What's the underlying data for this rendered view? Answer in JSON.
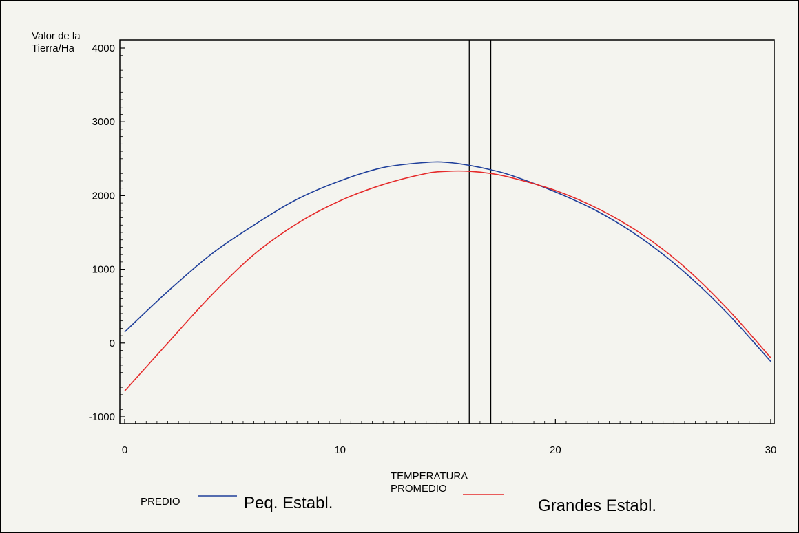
{
  "chart_data": {
    "type": "line",
    "title": "",
    "ylabel_lines": [
      "Valor de la",
      "Tierra/Ha"
    ],
    "xlabel_lines": [
      "TEMPERATURA",
      "PROMEDIO"
    ],
    "legend_title": "PREDIO",
    "xlim": [
      0,
      30
    ],
    "ylim": [
      -1000,
      4000
    ],
    "x_ticks": [
      0,
      10,
      20,
      30
    ],
    "x_tick_labels": [
      "0",
      "10",
      "20",
      "30"
    ],
    "y_ticks": [
      -1000,
      0,
      1000,
      2000,
      3000,
      4000
    ],
    "y_tick_labels": [
      "-1000",
      "0",
      "1000",
      "2000",
      "3000",
      "4000"
    ],
    "grid": false,
    "legend_position": "bottom",
    "vertical_lines": [
      16,
      17
    ],
    "series": [
      {
        "name": "Peq. Establ.",
        "color": "#1f3f9a",
        "x": [
          0,
          2,
          4,
          6,
          8,
          10,
          12,
          14,
          15,
          16,
          17,
          18,
          20,
          22,
          24,
          26,
          28,
          30
        ],
        "y": [
          150,
          700,
          1200,
          1600,
          1950,
          2200,
          2380,
          2450,
          2450,
          2410,
          2350,
          2270,
          2050,
          1780,
          1420,
          960,
          400,
          -250
        ]
      },
      {
        "name": "Grandes Establ.",
        "color": "#e52a2a",
        "x": [
          0,
          2,
          4,
          6,
          8,
          10,
          12,
          14,
          15,
          16,
          17,
          18,
          20,
          22,
          24,
          26,
          28,
          30
        ],
        "y": [
          -650,
          0,
          640,
          1200,
          1620,
          1930,
          2150,
          2300,
          2330,
          2330,
          2300,
          2240,
          2070,
          1820,
          1480,
          1030,
          460,
          -200
        ]
      }
    ]
  }
}
